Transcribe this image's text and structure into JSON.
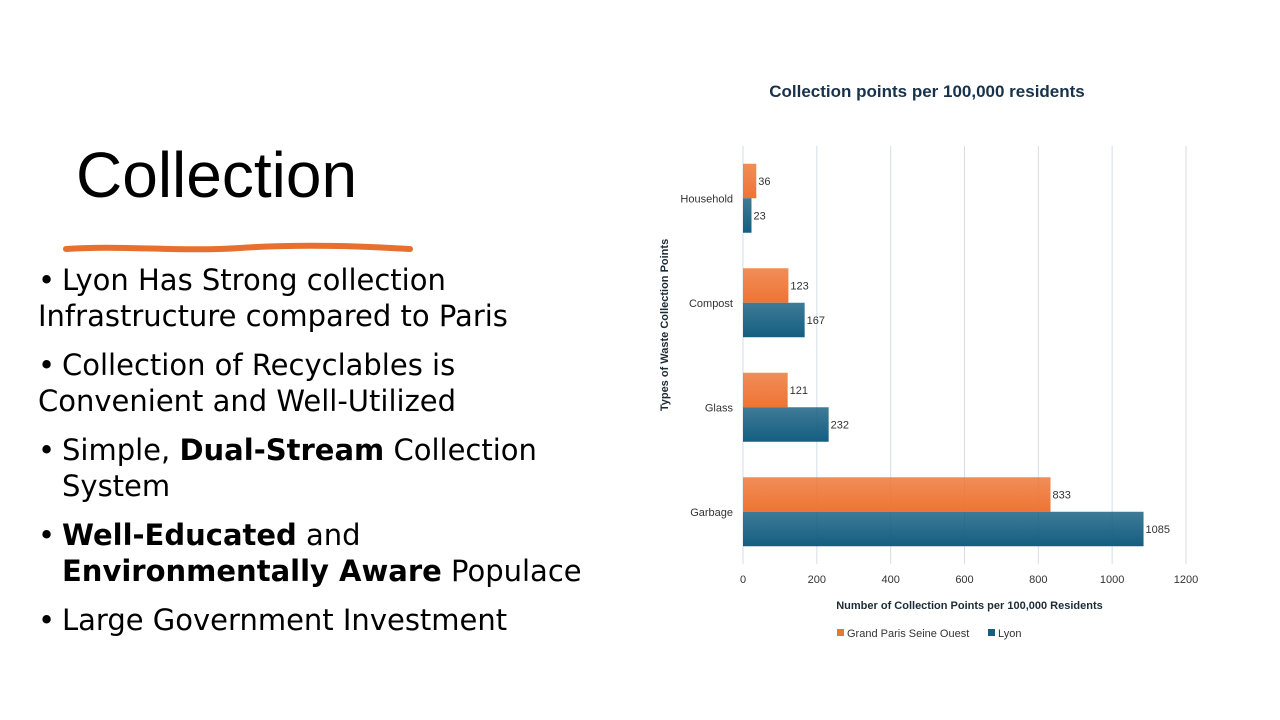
{
  "slide": {
    "title": "Collection",
    "bullets": [
      {
        "parts": [
          {
            "text": "Lyon Has Strong collection Infrastructure compared to Paris",
            "bold": false
          }
        ]
      },
      {
        "parts": [
          {
            "text": "Collection of Recyclables is Convenient and Well-Utilized",
            "bold": false
          }
        ]
      },
      {
        "parts": [
          {
            "text": "Simple, ",
            "bold": false
          },
          {
            "text": "Dual-Stream",
            "bold": true
          },
          {
            "text": " Collection System",
            "bold": false
          }
        ]
      },
      {
        "parts": [
          {
            "text": "Well-Educated",
            "bold": true
          },
          {
            "text": " and ",
            "bold": false
          },
          {
            "text": "Environmentally Aware",
            "bold": true
          },
          {
            "text": " Populace",
            "bold": false
          }
        ]
      },
      {
        "parts": [
          {
            "text": "Large Government Investment",
            "bold": false
          }
        ]
      }
    ],
    "accent_color": "#E8702E"
  },
  "chart_data": {
    "type": "bar",
    "orientation": "horizontal",
    "title": "Collection points per 100,000 residents",
    "xlabel": "Number of Collection Points per 100,000 Residents",
    "ylabel": "Types of Waste Collection Points",
    "categories": [
      "Household",
      "Compost",
      "Glass",
      "Garbage"
    ],
    "series": [
      {
        "name": "Grand Paris Seine Ouest",
        "values": [
          36,
          123,
          121,
          833
        ],
        "color": "#EE7434"
      },
      {
        "name": "Lyon",
        "values": [
          23,
          167,
          232,
          1085
        ],
        "color": "#145E80"
      }
    ],
    "xlim": [
      0,
      1200
    ],
    "xticks": [
      0,
      200,
      400,
      600,
      800,
      1000,
      1200
    ],
    "grid": true,
    "legend_position": "bottom"
  }
}
